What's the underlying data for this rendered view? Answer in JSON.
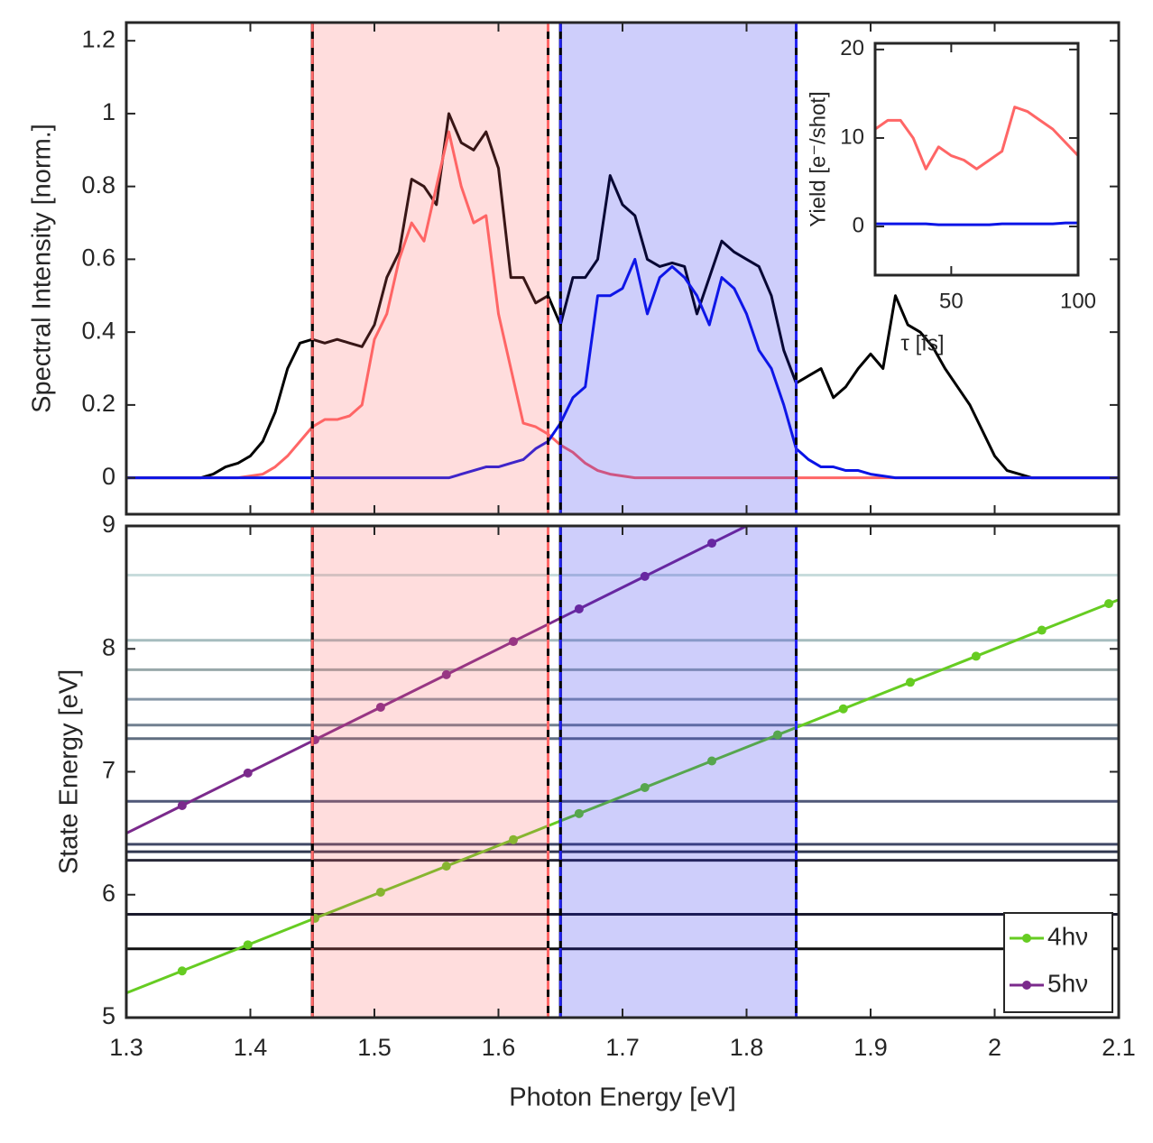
{
  "chart_data": [
    {
      "type": "line",
      "ylabel": "Spectral Intensity [norm.]",
      "xlim": [
        1.3,
        2.1
      ],
      "ylim": [
        -0.1,
        1.25
      ],
      "yticks": [
        0,
        0.2,
        0.4,
        0.6,
        0.8,
        1,
        1.2
      ],
      "bands": [
        {
          "range": [
            1.45,
            1.64
          ],
          "color": "#ff6666"
        },
        {
          "range": [
            1.65,
            1.84
          ],
          "color": "#2222ee"
        }
      ],
      "x": [
        1.3,
        1.31,
        1.32,
        1.33,
        1.34,
        1.35,
        1.36,
        1.37,
        1.38,
        1.39,
        1.4,
        1.41,
        1.42,
        1.43,
        1.44,
        1.45,
        1.46,
        1.47,
        1.48,
        1.49,
        1.5,
        1.51,
        1.52,
        1.53,
        1.54,
        1.55,
        1.56,
        1.57,
        1.58,
        1.59,
        1.6,
        1.61,
        1.62,
        1.63,
        1.64,
        1.65,
        1.66,
        1.67,
        1.68,
        1.69,
        1.7,
        1.71,
        1.72,
        1.73,
        1.74,
        1.75,
        1.76,
        1.77,
        1.78,
        1.79,
        1.8,
        1.81,
        1.82,
        1.83,
        1.84,
        1.85,
        1.86,
        1.87,
        1.88,
        1.89,
        1.9,
        1.91,
        1.92,
        1.93,
        1.94,
        1.95,
        1.96,
        1.97,
        1.98,
        1.99,
        2,
        2.01,
        2.02,
        2.03,
        2.04,
        2.05,
        2.06,
        2.07,
        2.08,
        2.09,
        2.1
      ],
      "series": [
        {
          "color": "#000000",
          "values": [
            0,
            0,
            0,
            0,
            0,
            0,
            0,
            0.01,
            0.03,
            0.04,
            0.06,
            0.1,
            0.18,
            0.3,
            0.37,
            0.38,
            0.37,
            0.38,
            0.37,
            0.36,
            0.42,
            0.55,
            0.62,
            0.82,
            0.8,
            0.75,
            1.0,
            0.92,
            0.9,
            0.95,
            0.85,
            0.55,
            0.55,
            0.48,
            0.5,
            0.42,
            0.55,
            0.55,
            0.6,
            0.83,
            0.75,
            0.72,
            0.6,
            0.58,
            0.59,
            0.58,
            0.45,
            0.55,
            0.65,
            0.62,
            0.6,
            0.58,
            0.5,
            0.35,
            0.26,
            0.28,
            0.3,
            0.22,
            0.25,
            0.3,
            0.34,
            0.3,
            0.5,
            0.42,
            0.4,
            0.36,
            0.3,
            0.25,
            0.2,
            0.13,
            0.06,
            0.02,
            0.01,
            0,
            0,
            0,
            0,
            0,
            0,
            0,
            0
          ]
        },
        {
          "color": "#ff6666",
          "values": [
            0,
            0,
            0,
            0,
            0,
            0,
            0,
            0,
            0,
            0,
            0.005,
            0.01,
            0.03,
            0.06,
            0.1,
            0.14,
            0.16,
            0.16,
            0.17,
            0.2,
            0.38,
            0.45,
            0.6,
            0.7,
            0.65,
            0.8,
            0.95,
            0.8,
            0.7,
            0.72,
            0.45,
            0.3,
            0.15,
            0.14,
            0.12,
            0.09,
            0.07,
            0.04,
            0.02,
            0.01,
            0.005,
            0,
            0,
            0,
            0,
            0,
            0,
            0,
            0,
            0,
            0,
            0,
            0,
            0,
            0,
            0,
            0,
            0,
            0,
            0,
            0,
            0,
            0,
            0,
            0,
            0,
            0,
            0,
            0,
            0,
            0,
            0,
            0,
            0,
            0,
            0,
            0,
            0,
            0,
            0,
            0
          ]
        },
        {
          "color": "#0a14e6",
          "values": [
            0,
            0,
            0,
            0,
            0,
            0,
            0,
            0,
            0,
            0,
            0,
            0,
            0,
            0,
            0,
            0,
            0,
            0,
            0,
            0,
            0,
            0,
            0,
            0,
            0,
            0,
            0,
            0.01,
            0.02,
            0.03,
            0.03,
            0.04,
            0.05,
            0.08,
            0.1,
            0.15,
            0.22,
            0.25,
            0.5,
            0.5,
            0.52,
            0.6,
            0.45,
            0.55,
            0.58,
            0.55,
            0.5,
            0.42,
            0.55,
            0.52,
            0.45,
            0.35,
            0.3,
            0.2,
            0.08,
            0.05,
            0.03,
            0.03,
            0.02,
            0.02,
            0.01,
            0.005,
            0,
            0,
            0,
            0,
            0,
            0,
            0,
            0,
            0,
            0,
            0,
            0,
            0,
            0,
            0,
            0,
            0,
            0,
            0
          ]
        }
      ]
    },
    {
      "type": "line",
      "xlabel": "τ [fs]",
      "ylabel": "Yield [e⁻/shot]",
      "xlim": [
        20,
        100
      ],
      "ylim": [
        -5.5,
        20.7
      ],
      "xticks": [
        50,
        100
      ],
      "yticks": [
        0,
        10,
        20
      ],
      "x": [
        20,
        25,
        30,
        35,
        40,
        45,
        50,
        55,
        60,
        65,
        70,
        75,
        80,
        85,
        90,
        95,
        100
      ],
      "series": [
        {
          "color": "#ff6666",
          "values": [
            11,
            12,
            12,
            10,
            6.5,
            9,
            8,
            7.5,
            6.5,
            7.5,
            8.5,
            13.5,
            13,
            12,
            11,
            9.5,
            8
          ]
        },
        {
          "color": "#0a14e6",
          "values": [
            0.3,
            0.3,
            0.3,
            0.3,
            0.3,
            0.2,
            0.2,
            0.2,
            0.2,
            0.2,
            0.3,
            0.3,
            0.3,
            0.3,
            0.3,
            0.4,
            0.4
          ]
        }
      ]
    },
    {
      "type": "line",
      "xlabel": "Photon Energy [eV]",
      "ylabel": "State Energy [eV]",
      "xlim": [
        1.3,
        2.1
      ],
      "ylim": [
        5,
        9
      ],
      "xticks": [
        1.3,
        1.4,
        1.5,
        1.6,
        1.7,
        1.8,
        1.9,
        2,
        2.1
      ],
      "yticks": [
        5,
        6,
        7,
        8,
        9
      ],
      "hlines": [
        {
          "value": 8.6,
          "color": "#c8dcdc"
        },
        {
          "value": 8.07,
          "color": "#a6bcbe"
        },
        {
          "value": 7.83,
          "color": "#98a8aa"
        },
        {
          "value": 7.59,
          "color": "#8696a6"
        },
        {
          "value": 7.38,
          "color": "#718090"
        },
        {
          "value": 7.27,
          "color": "#606e80"
        },
        {
          "value": 6.76,
          "color": "#505878"
        },
        {
          "value": 6.41,
          "color": "#404866"
        },
        {
          "value": 6.35,
          "color": "#323850"
        },
        {
          "value": 6.28,
          "color": "#282838"
        },
        {
          "value": 5.84,
          "color": "#1a1a2c"
        },
        {
          "value": 5.56,
          "color": "#101010"
        }
      ],
      "legend": "lower right",
      "series": [
        {
          "name": "4hν",
          "color": "#66cc22",
          "x": [
            1.3,
            1.345,
            1.398,
            1.452,
            1.505,
            1.558,
            1.612,
            1.665,
            1.718,
            1.772,
            1.825,
            1.878,
            1.932,
            1.985,
            2.038,
            2.092,
            2.1
          ],
          "values": [
            5.2,
            5.38,
            5.592,
            5.808,
            6.02,
            6.232,
            6.448,
            6.66,
            6.872,
            7.088,
            7.3,
            7.512,
            7.728,
            7.94,
            8.152,
            8.368,
            8.4
          ]
        },
        {
          "name": "5hν",
          "color": "#7b2a8c",
          "x": [
            1.3,
            1.345,
            1.398,
            1.452,
            1.505,
            1.558,
            1.612,
            1.665,
            1.718,
            1.772,
            1.8
          ],
          "values": [
            6.5,
            6.725,
            6.99,
            7.26,
            7.525,
            7.79,
            8.06,
            8.325,
            8.59,
            8.86,
            9
          ]
        }
      ]
    }
  ]
}
